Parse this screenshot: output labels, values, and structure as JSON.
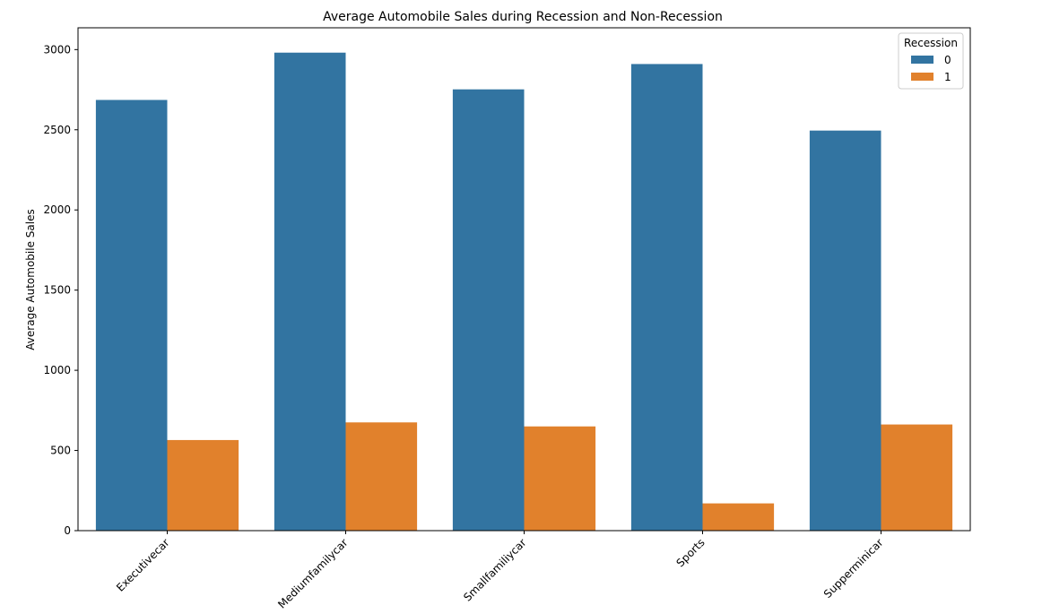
{
  "chart_data": {
    "type": "bar",
    "title": "Average Automobile Sales during Recession and Non-Recession",
    "xlabel": "",
    "ylabel": "Average Automobile Sales",
    "categories": [
      "Executivecar",
      "Mediumfamilycar",
      "Smallfamiliycar",
      "Sports",
      "Supperminicar"
    ],
    "series": [
      {
        "name": "0",
        "color": "#3274a1",
        "values": [
          2686,
          2981,
          2752,
          2910,
          2495
        ]
      },
      {
        "name": "1",
        "color": "#e1812c",
        "values": [
          565,
          675,
          650,
          170,
          662
        ]
      }
    ],
    "ylim": [
      0,
      3136
    ],
    "yticks": [
      "0",
      "500",
      "1000",
      "1500",
      "2000",
      "2500",
      "3000"
    ],
    "grid": false,
    "legend": {
      "title": "Recession",
      "placement": "top-right"
    },
    "xtick_rotation": "45"
  }
}
